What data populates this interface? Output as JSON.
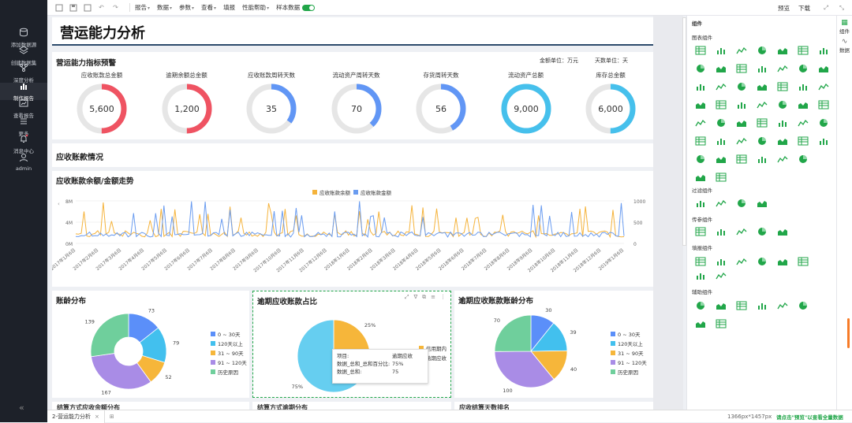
{
  "nav": [
    {
      "label": "添加数据源",
      "icon": "database-icon"
    },
    {
      "label": "创建数据集",
      "icon": "layers-icon"
    },
    {
      "label": "深度分析",
      "icon": "branch-icon"
    },
    {
      "label": "制作报告",
      "icon": "bar-chart-icon",
      "active": true
    },
    {
      "label": "查看报告",
      "icon": "report-icon"
    },
    {
      "label": "更多",
      "icon": "menu-icon"
    },
    {
      "label": "消息中心",
      "icon": "bell-icon"
    },
    {
      "label": "admin",
      "icon": "user-icon"
    }
  ],
  "toolbar": {
    "menus": [
      "报告",
      "数据",
      "参数",
      "查看",
      "填报",
      "性能帮助",
      "样本数据"
    ],
    "preview": "预览",
    "download": "下载"
  },
  "page": {
    "title": "营运能力分析"
  },
  "kpi": {
    "title": "营运能力指标预警",
    "amount_unit": "金额单位：万元",
    "day_unit": "天数单位：天",
    "gauges": [
      {
        "label": "应收账款总金额",
        "value": "5,600",
        "fill": 0.5,
        "color": "#ef5362"
      },
      {
        "label": "逾期余额总金额",
        "value": "1,200",
        "fill": 0.5,
        "color": "#ef5362"
      },
      {
        "label": "应收账款周转天数",
        "value": "35",
        "fill": 0.35,
        "color": "#6196f5"
      },
      {
        "label": "流动资产周转天数",
        "value": "70",
        "fill": 0.38,
        "color": "#6196f5"
      },
      {
        "label": "存货周转天数",
        "value": "56",
        "fill": 0.42,
        "color": "#6196f5"
      },
      {
        "label": "流动资产总额",
        "value": "9,000",
        "fill": 1,
        "color": "#46c0ec"
      },
      {
        "label": "库存总金额",
        "value": "6,000",
        "fill": 0.5,
        "color": "#46c0ec"
      }
    ]
  },
  "ar_section": {
    "title": "应收账款情况"
  },
  "trend": {
    "title": "应收账款余额/金额走势",
    "legend": [
      "应收账款余额",
      "应收账款金额"
    ],
    "colors": [
      "#f5b33b",
      "#6a9cf0"
    ],
    "y_left": [
      "8M",
      "4M",
      "0M"
    ],
    "y_right": [
      "1000",
      "500",
      "0"
    ],
    "x_ticks": [
      "2017年1月6日",
      "2017年2月6日",
      "2017年3月6日",
      "2017年4月6日",
      "2017年5月6日",
      "2017年6月6日",
      "2017年7月6日",
      "2017年8月6日",
      "2017年9月6日",
      "2017年10月6日",
      "2017年11月6日",
      "2017年12月6日",
      "2018年1月6日",
      "2018年2月6日",
      "2018年3月6日",
      "2018年4月6日",
      "2018年5月6日",
      "2018年6月6日",
      "2018年7月6日",
      "2018年8月6日",
      "2018年9月6日",
      "2018年10月6日",
      "2018年11月6日",
      "2018年12月6日",
      "2019年1月6日"
    ]
  },
  "pie_legend": [
    "0 ~ 30天",
    "120天以上",
    "31 ~ 90天",
    "91 ~ 120天",
    "历史原因"
  ],
  "pie_colors": [
    "#5b8ff9",
    "#42c0ee",
    "#f6b63a",
    "#a98ce6",
    "#6fcf9c"
  ],
  "aging": {
    "title": "账龄分布",
    "values": [
      73,
      79,
      52,
      167,
      139
    ]
  },
  "overdue_share": {
    "title": "逾期应收账款占比",
    "labels": [
      "25%",
      "75%"
    ],
    "legend": [
      "信用期内",
      "逾期应收"
    ],
    "values": [
      25,
      75
    ],
    "colors": [
      "#f6b63a",
      "#66cef0"
    ],
    "tooltip": {
      "k1": "项目:",
      "v1": "逾期应收",
      "k2": "数据_总和_总和百分比:",
      "v2": "75%",
      "k3": "数据_总和:",
      "v3": "75"
    }
  },
  "overdue_aging": {
    "title": "逾期应收账款账龄分布",
    "values": [
      30,
      39,
      40,
      100,
      70
    ]
  },
  "bottom": [
    "结算方式应收余额分布",
    "结算方式逾期分布",
    "应收结算天数排名"
  ],
  "components": {
    "title": "组件",
    "sections": [
      "图表组件",
      "过滤组件",
      "传参组件",
      "填报组件",
      "辅助组件"
    ]
  },
  "side_tabs": [
    "组件",
    "数据"
  ],
  "status": {
    "tab": "2-营运能力分析",
    "size": "1366px*1457px",
    "hint": "请点击\"预览\"以查看全量数据"
  }
}
